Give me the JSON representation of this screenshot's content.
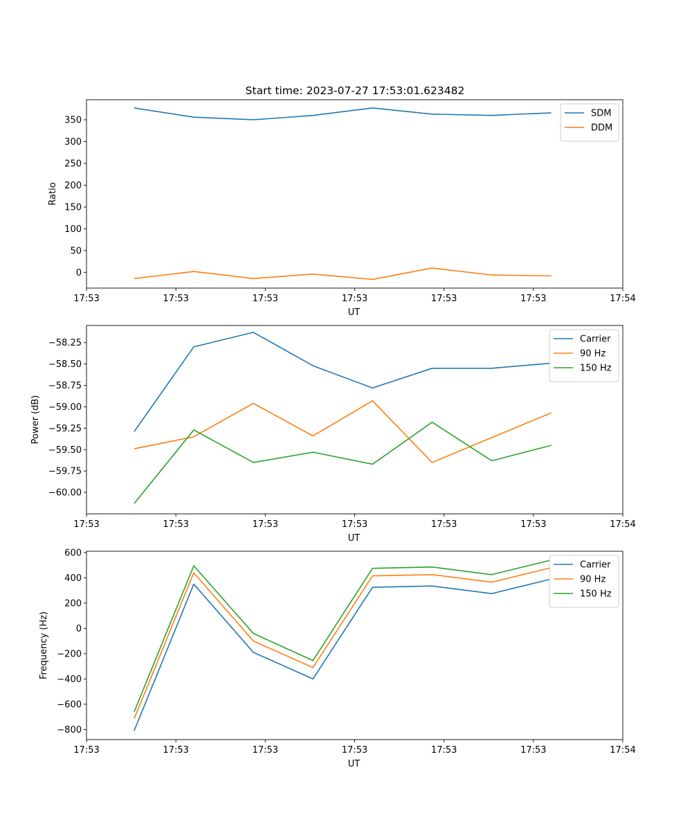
{
  "figure_title": "Start time: 2023-07-27 17:53:01.623482",
  "chart_data": [
    {
      "type": "line",
      "title": "Start time: 2023-07-27 17:53:01.623482",
      "xlabel": "UT",
      "ylabel": "Ratio",
      "x": [
        1,
        2,
        3,
        4,
        5,
        6,
        7,
        8
      ],
      "xlim": [
        0.2,
        9.2
      ],
      "xticks": [
        0.2,
        1.7,
        3.2,
        4.7,
        6.2,
        7.7,
        9.2
      ],
      "xtick_labels": [
        "17:53",
        "17:53",
        "17:53",
        "17:53",
        "17:53",
        "17:53",
        "17:54"
      ],
      "ylim": [
        -36,
        396
      ],
      "yticks": [
        0,
        50,
        100,
        150,
        200,
        250,
        300,
        350
      ],
      "ytick_labels": [
        "0",
        "50",
        "100",
        "150",
        "200",
        "250",
        "300",
        "350"
      ],
      "legend_position": "top-right",
      "series": [
        {
          "name": "SDM",
          "color": "#1f77b4",
          "values": [
            377,
            356,
            350,
            360,
            377,
            363,
            360,
            366
          ]
        },
        {
          "name": "DDM",
          "color": "#ff7f0e",
          "values": [
            -14,
            2,
            -14,
            -4,
            -16,
            10,
            -6,
            -8
          ]
        }
      ]
    },
    {
      "type": "line",
      "title": "",
      "xlabel": "UT",
      "ylabel": "Power (dB)",
      "x": [
        1,
        2,
        3,
        4,
        5,
        6,
        7,
        8
      ],
      "xlim": [
        0.2,
        9.2
      ],
      "xticks": [
        0.2,
        1.7,
        3.2,
        4.7,
        6.2,
        7.7,
        9.2
      ],
      "xtick_labels": [
        "17:53",
        "17:53",
        "17:53",
        "17:53",
        "17:53",
        "17:53",
        "17:54"
      ],
      "ylim": [
        -60.25,
        -58.05
      ],
      "yticks": [
        -60.0,
        -59.75,
        -59.5,
        -59.25,
        -59.0,
        -58.75,
        -58.5,
        -58.25
      ],
      "ytick_labels": [
        "−60.00",
        "−59.75",
        "−59.50",
        "−59.25",
        "−59.00",
        "−58.75",
        "−58.50",
        "−58.25"
      ],
      "legend_position": "top-right",
      "series": [
        {
          "name": "Carrier",
          "color": "#1f77b4",
          "values": [
            -59.29,
            -58.3,
            -58.13,
            -58.52,
            -58.78,
            -58.55,
            -58.55,
            -58.49
          ]
        },
        {
          "name": "90 Hz",
          "color": "#ff7f0e",
          "values": [
            -59.49,
            -59.35,
            -58.96,
            -59.34,
            -58.93,
            -59.65,
            -59.36,
            -59.07
          ]
        },
        {
          "name": "150 Hz",
          "color": "#2ca02c",
          "values": [
            -60.13,
            -59.27,
            -59.65,
            -59.53,
            -59.67,
            -59.18,
            -59.63,
            -59.45
          ]
        }
      ]
    },
    {
      "type": "line",
      "title": "",
      "xlabel": "UT",
      "ylabel": "Frequency (Hz)",
      "x": [
        1,
        2,
        3,
        4,
        5,
        6,
        7,
        8
      ],
      "xlim": [
        0.2,
        9.2
      ],
      "xticks": [
        0.2,
        1.7,
        3.2,
        4.7,
        6.2,
        7.7,
        9.2
      ],
      "xtick_labels": [
        "17:53",
        "17:53",
        "17:53",
        "17:53",
        "17:53",
        "17:53",
        "17:54"
      ],
      "ylim": [
        -880,
        610
      ],
      "yticks": [
        -800,
        -600,
        -400,
        -200,
        0,
        200,
        400,
        600
      ],
      "ytick_labels": [
        "−800",
        "−600",
        "−400",
        "−200",
        "0",
        "200",
        "400",
        "600"
      ],
      "legend_position": "top-right",
      "series": [
        {
          "name": "Carrier",
          "color": "#1f77b4",
          "values": [
            -810,
            350,
            -190,
            -400,
            325,
            335,
            275,
            390
          ]
        },
        {
          "name": "90 Hz",
          "color": "#ff7f0e",
          "values": [
            -715,
            440,
            -100,
            -310,
            415,
            425,
            365,
            480
          ]
        },
        {
          "name": "150 Hz",
          "color": "#2ca02c",
          "values": [
            -660,
            495,
            -40,
            -255,
            475,
            485,
            425,
            540
          ]
        }
      ]
    }
  ]
}
